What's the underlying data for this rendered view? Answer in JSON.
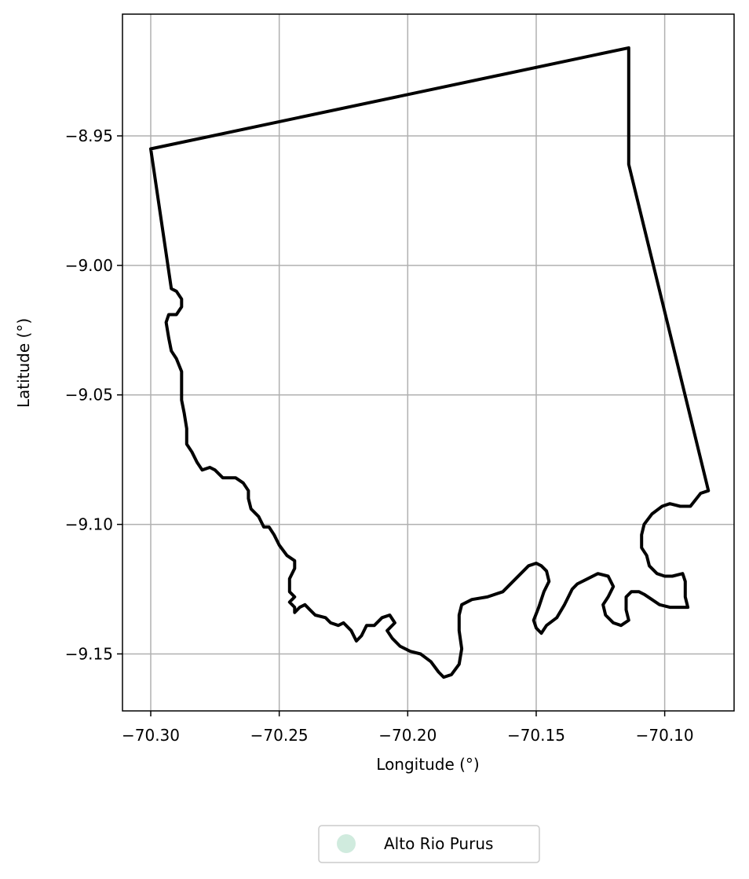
{
  "chart_data": {
    "type": "map",
    "title": "",
    "xlabel": "Longitude (°)",
    "ylabel": "Latitude (°)",
    "xlim": [
      -70.311,
      -70.073
    ],
    "ylim": [
      -9.172,
      -8.903
    ],
    "x_ticks": [
      -70.3,
      -70.25,
      -70.2,
      -70.15,
      -70.1
    ],
    "x_tick_labels": [
      "−70.30",
      "−70.25",
      "−70.20",
      "−70.15",
      "−70.10"
    ],
    "y_ticks": [
      -8.95,
      -9.0,
      -9.05,
      -9.1,
      -9.15
    ],
    "y_tick_labels": [
      "−8.95",
      "−9.00",
      "−9.05",
      "−9.10",
      "−9.15"
    ],
    "grid": true,
    "legend": {
      "placement": "bottom-center",
      "entries": [
        {
          "label": "Alto Rio Purus",
          "color": "#d0ebde"
        }
      ]
    },
    "boundary_color": "#000000",
    "boundary": [
      [
        -70.3,
        -8.955
      ],
      [
        -70.114,
        -8.916
      ],
      [
        -70.114,
        -8.961
      ],
      [
        -70.083,
        -9.087
      ],
      [
        -70.086,
        -9.088
      ],
      [
        -70.09,
        -9.093
      ],
      [
        -70.094,
        -9.093
      ],
      [
        -70.098,
        -9.092
      ],
      [
        -70.101,
        -9.093
      ],
      [
        -70.105,
        -9.096
      ],
      [
        -70.108,
        -9.1
      ],
      [
        -70.109,
        -9.104
      ],
      [
        -70.109,
        -9.109
      ],
      [
        -70.107,
        -9.112
      ],
      [
        -70.106,
        -9.116
      ],
      [
        -70.103,
        -9.119
      ],
      [
        -70.1,
        -9.12
      ],
      [
        -70.097,
        -9.12
      ],
      [
        -70.093,
        -9.119
      ],
      [
        -70.092,
        -9.122
      ],
      [
        -70.092,
        -9.128
      ],
      [
        -70.091,
        -9.132
      ],
      [
        -70.095,
        -9.132
      ],
      [
        -70.098,
        -9.132
      ],
      [
        -70.102,
        -9.131
      ],
      [
        -70.105,
        -9.129
      ],
      [
        -70.108,
        -9.127
      ],
      [
        -70.11,
        -9.126
      ],
      [
        -70.113,
        -9.126
      ],
      [
        -70.115,
        -9.128
      ],
      [
        -70.115,
        -9.133
      ],
      [
        -70.114,
        -9.137
      ],
      [
        -70.117,
        -9.139
      ],
      [
        -70.12,
        -9.138
      ],
      [
        -70.123,
        -9.135
      ],
      [
        -70.124,
        -9.131
      ],
      [
        -70.122,
        -9.128
      ],
      [
        -70.12,
        -9.124
      ],
      [
        -70.122,
        -9.12
      ],
      [
        -70.126,
        -9.119
      ],
      [
        -70.13,
        -9.121
      ],
      [
        -70.134,
        -9.123
      ],
      [
        -70.136,
        -9.125
      ],
      [
        -70.139,
        -9.131
      ],
      [
        -70.142,
        -9.136
      ],
      [
        -70.146,
        -9.139
      ],
      [
        -70.148,
        -9.142
      ],
      [
        -70.15,
        -9.14
      ],
      [
        -70.151,
        -9.137
      ],
      [
        -70.149,
        -9.132
      ],
      [
        -70.147,
        -9.126
      ],
      [
        -70.145,
        -9.122
      ],
      [
        -70.146,
        -9.118
      ],
      [
        -70.148,
        -9.116
      ],
      [
        -70.15,
        -9.115
      ],
      [
        -70.153,
        -9.116
      ],
      [
        -70.158,
        -9.121
      ],
      [
        -70.163,
        -9.126
      ],
      [
        -70.169,
        -9.128
      ],
      [
        -70.175,
        -9.129
      ],
      [
        -70.179,
        -9.131
      ],
      [
        -70.18,
        -9.135
      ],
      [
        -70.18,
        -9.141
      ],
      [
        -70.179,
        -9.148
      ],
      [
        -70.18,
        -9.154
      ],
      [
        -70.183,
        -9.158
      ],
      [
        -70.186,
        -9.159
      ],
      [
        -70.188,
        -9.157
      ],
      [
        -70.191,
        -9.153
      ],
      [
        -70.195,
        -9.15
      ],
      [
        -70.199,
        -9.149
      ],
      [
        -70.203,
        -9.147
      ],
      [
        -70.206,
        -9.144
      ],
      [
        -70.208,
        -9.141
      ],
      [
        -70.205,
        -9.138
      ],
      [
        -70.207,
        -9.135
      ],
      [
        -70.21,
        -9.136
      ],
      [
        -70.213,
        -9.139
      ],
      [
        -70.216,
        -9.139
      ],
      [
        -70.218,
        -9.143
      ],
      [
        -70.22,
        -9.145
      ],
      [
        -70.222,
        -9.141
      ],
      [
        -70.225,
        -9.138
      ],
      [
        -70.227,
        -9.139
      ],
      [
        -70.23,
        -9.138
      ],
      [
        -70.232,
        -9.136
      ],
      [
        -70.236,
        -9.135
      ],
      [
        -70.238,
        -9.133
      ],
      [
        -70.24,
        -9.131
      ],
      [
        -70.242,
        -9.132
      ],
      [
        -70.244,
        -9.134
      ],
      [
        -70.244,
        -9.132
      ],
      [
        -70.246,
        -9.13
      ],
      [
        -70.244,
        -9.128
      ],
      [
        -70.246,
        -9.126
      ],
      [
        -70.246,
        -9.121
      ],
      [
        -70.244,
        -9.117
      ],
      [
        -70.244,
        -9.114
      ],
      [
        -70.247,
        -9.112
      ],
      [
        -70.25,
        -9.108
      ],
      [
        -70.252,
        -9.104
      ],
      [
        -70.254,
        -9.101
      ],
      [
        -70.256,
        -9.101
      ],
      [
        -70.258,
        -9.097
      ],
      [
        -70.261,
        -9.094
      ],
      [
        -70.262,
        -9.09
      ],
      [
        -70.262,
        -9.087
      ],
      [
        -70.264,
        -9.084
      ],
      [
        -70.267,
        -9.082
      ],
      [
        -70.272,
        -9.082
      ],
      [
        -70.275,
        -9.079
      ],
      [
        -70.277,
        -9.078
      ],
      [
        -70.28,
        -9.079
      ],
      [
        -70.282,
        -9.076
      ],
      [
        -70.284,
        -9.072
      ],
      [
        -70.286,
        -9.069
      ],
      [
        -70.286,
        -9.063
      ],
      [
        -70.287,
        -9.057
      ],
      [
        -70.288,
        -9.052
      ],
      [
        -70.288,
        -9.046
      ],
      [
        -70.288,
        -9.041
      ],
      [
        -70.29,
        -9.036
      ],
      [
        -70.292,
        -9.033
      ],
      [
        -70.293,
        -9.028
      ],
      [
        -70.294,
        -9.022
      ],
      [
        -70.293,
        -9.019
      ],
      [
        -70.29,
        -9.019
      ],
      [
        -70.288,
        -9.016
      ],
      [
        -70.288,
        -9.013
      ],
      [
        -70.29,
        -9.01
      ],
      [
        -70.292,
        -9.009
      ],
      [
        -70.3,
        -8.955
      ]
    ]
  }
}
